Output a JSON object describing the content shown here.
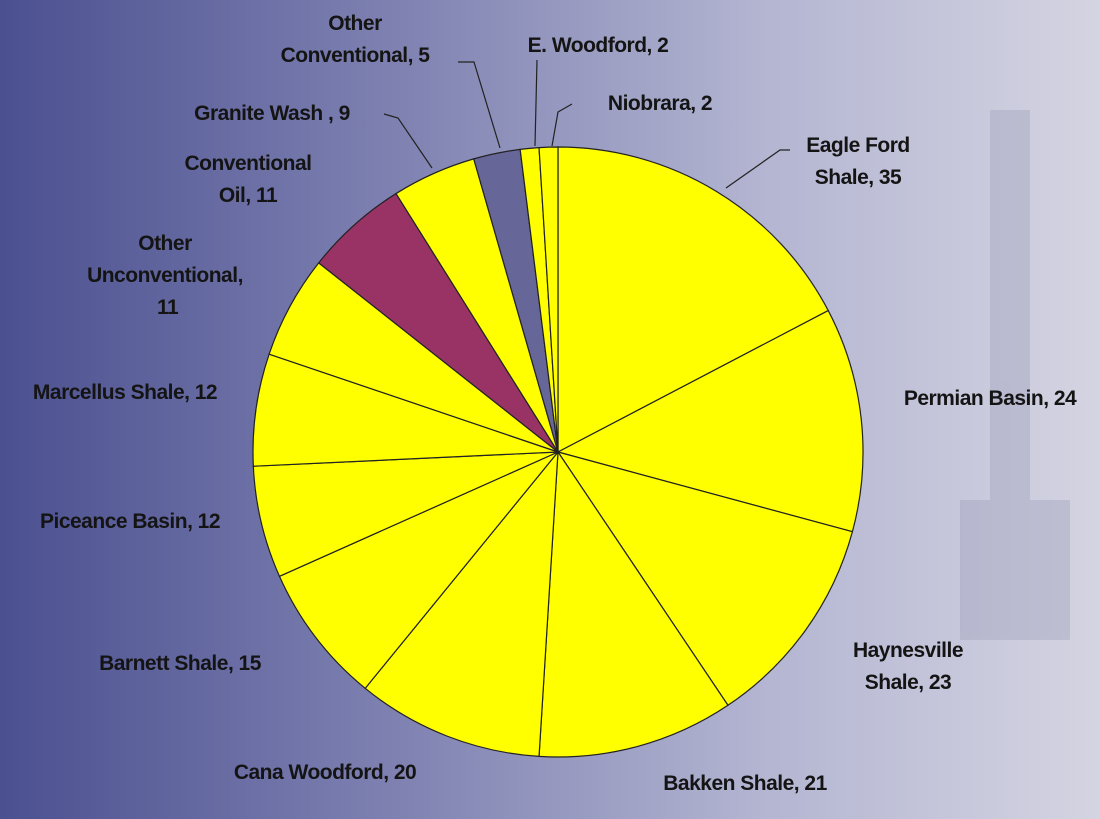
{
  "chart_data": {
    "type": "pie",
    "categories": [
      "Eagle Ford Shale,",
      "Permian Basin,",
      "Haynesville Shale,",
      "Bakken Shale,",
      "Cana Woodford,",
      "Barnett Shale,",
      "Piceance Basin,",
      "Marcellus Shale,",
      "Other Unconventional,",
      "Conventional Oil,",
      "Granite Wash ,",
      "Other Conventional,",
      "E. Woodford,",
      "Niobrara,"
    ],
    "values": [
      35,
      24,
      23,
      21,
      20,
      15,
      12,
      12,
      11,
      11,
      9,
      5,
      2,
      2
    ],
    "colors": [
      "#ffff00",
      "#ffff00",
      "#ffff00",
      "#ffff00",
      "#ffff00",
      "#ffff00",
      "#ffff00",
      "#ffff00",
      "#ffff00",
      "#993366",
      "#ffff00",
      "#666699",
      "#ffff00",
      "#ffff00"
    ]
  }
}
